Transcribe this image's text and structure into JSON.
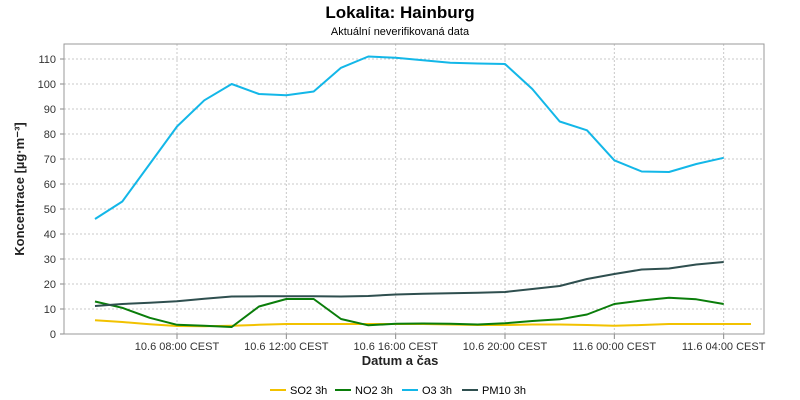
{
  "chart_data": {
    "type": "line",
    "title": "Lokalita: Hainburg",
    "subtitle": "Aktuální neverifikovaná data",
    "xlabel": "Datum a čas",
    "ylabel": "Koncentrace [µg·m⁻³]",
    "ylim": [
      0,
      116
    ],
    "yticks": [
      0,
      10,
      20,
      30,
      40,
      50,
      60,
      70,
      80,
      90,
      100,
      110
    ],
    "grid": true,
    "legend_position": "bottom",
    "x_ticks": [
      "10.6 08:00 CEST",
      "10.6 12:00 CEST",
      "10.6 16:00 CEST",
      "10.6 20:00 CEST",
      "11.6 00:00 CEST",
      "11.6 04:00 CEST"
    ],
    "x": [
      "10.6 05:00",
      "10.6 06:00",
      "10.6 07:00",
      "10.6 08:00",
      "10.6 09:00",
      "10.6 10:00",
      "10.6 11:00",
      "10.6 12:00",
      "10.6 13:00",
      "10.6 14:00",
      "10.6 15:00",
      "10.6 16:00",
      "10.6 17:00",
      "10.6 18:00",
      "10.6 19:00",
      "10.6 20:00",
      "10.6 21:00",
      "10.6 22:00",
      "10.6 23:00",
      "11.6 00:00",
      "11.6 01:00",
      "11.6 02:00",
      "11.6 03:00",
      "11.6 04:00",
      "11.6 05:00"
    ],
    "series": [
      {
        "name": "SO2 3h",
        "color": "#f2c200",
        "values": [
          5.5,
          4.8,
          3.9,
          3.2,
          3.1,
          3.3,
          3.7,
          4.0,
          4.0,
          4.0,
          4.0,
          4.0,
          4.0,
          3.8,
          3.6,
          3.6,
          3.8,
          3.8,
          3.6,
          3.3,
          3.6,
          4.0,
          4.0,
          4.0,
          4.0
        ]
      },
      {
        "name": "NO2 3h",
        "color": "#0a7d0a",
        "values": [
          13,
          10.5,
          6.5,
          3.7,
          3.3,
          2.8,
          11,
          14,
          14,
          6,
          3.5,
          4.1,
          4.2,
          4.1,
          3.8,
          4.3,
          5.2,
          5.9,
          7.8,
          12,
          13.4,
          14.5,
          13.9,
          12,
          null
        ]
      },
      {
        "name": "O3 3h",
        "color": "#13b7e8",
        "values": [
          46,
          53,
          68,
          83,
          93.5,
          100,
          96,
          95.5,
          97,
          106.5,
          111,
          110.5,
          109.5,
          108.5,
          108.2,
          108,
          98,
          85,
          81.5,
          69.5,
          65,
          64.8,
          68,
          70.5,
          null
        ]
      },
      {
        "name": "PM10 3h",
        "color": "#2f4f4f",
        "values": [
          11.2,
          12,
          12.5,
          13.1,
          14.1,
          15,
          15.1,
          15.1,
          15.1,
          15,
          15.2,
          15.8,
          16.1,
          16.3,
          16.5,
          16.8,
          18,
          19.2,
          22,
          24,
          25.8,
          26.2,
          27.8,
          28.8,
          null
        ]
      }
    ]
  }
}
